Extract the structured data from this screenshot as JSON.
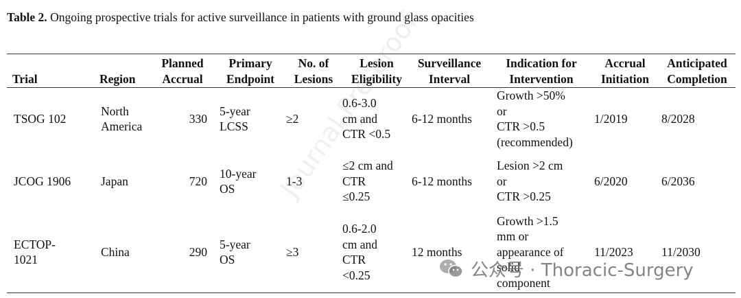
{
  "caption": {
    "label": "Table 2.",
    "text": " Ongoing prospective trials for active surveillance in patients with ground glass opacities"
  },
  "headers": [
    [
      "",
      "Trial"
    ],
    [
      "",
      "Region"
    ],
    [
      "Planned",
      "Accrual"
    ],
    [
      "Primary",
      "Endpoint"
    ],
    [
      "No. of",
      "Lesions"
    ],
    [
      "Lesion",
      "Eligibility"
    ],
    [
      "Surveillance",
      "Interval"
    ],
    [
      "Indication for",
      "Intervention"
    ],
    [
      "Accrual",
      "Initiation"
    ],
    [
      "Anticipated",
      "Completion"
    ]
  ],
  "rows": [
    {
      "trial": [
        "TSOG 102"
      ],
      "region": [
        "North",
        "America"
      ],
      "accrual": [
        "330"
      ],
      "endpoint": [
        "5-year",
        "LCSS"
      ],
      "lesions": [
        "≥2"
      ],
      "eligibility": [
        "0.6-3.0",
        "cm and",
        "CTR <0.5"
      ],
      "interval": [
        "6-12 months"
      ],
      "indication": [
        "Growth >50%",
        "or",
        "CTR >0.5",
        "(recommended)"
      ],
      "initiation": [
        "1/2019"
      ],
      "completion": [
        "8/2028"
      ]
    },
    {
      "trial": [
        "JCOG 1906"
      ],
      "region": [
        "Japan"
      ],
      "accrual": [
        "720"
      ],
      "endpoint": [
        "10-year",
        "OS"
      ],
      "lesions": [
        "1-3"
      ],
      "eligibility": [
        "≤2 cm and",
        "CTR",
        "≤0.25"
      ],
      "interval": [
        "6-12 months"
      ],
      "indication": [
        "Lesion >2 cm",
        "or",
        "CTR >0.25"
      ],
      "initiation": [
        "6/2020"
      ],
      "completion": [
        "6/2036"
      ]
    },
    {
      "trial": [
        "ECTOP-",
        "1021"
      ],
      "region": [
        "China"
      ],
      "accrual": [
        "290"
      ],
      "endpoint": [
        "5-year",
        "OS"
      ],
      "lesions": [
        "≥3"
      ],
      "eligibility": [
        "0.6-2.0",
        "cm and",
        "CTR",
        "<0.25"
      ],
      "interval": [
        "12 months"
      ],
      "indication": [
        "Growth >1.5",
        "mm or",
        "appearance of",
        "solid",
        "component"
      ],
      "initiation": [
        "11/2023"
      ],
      "completion": [
        "11/2030"
      ]
    }
  ],
  "watermarks": {
    "diagonal": "Journal Pre-proof",
    "wechat": "公众号 · Thoracic-Surgery"
  },
  "colors": {
    "text": "#111111",
    "rule": "#333333",
    "watermark": "#8a8a8a"
  }
}
